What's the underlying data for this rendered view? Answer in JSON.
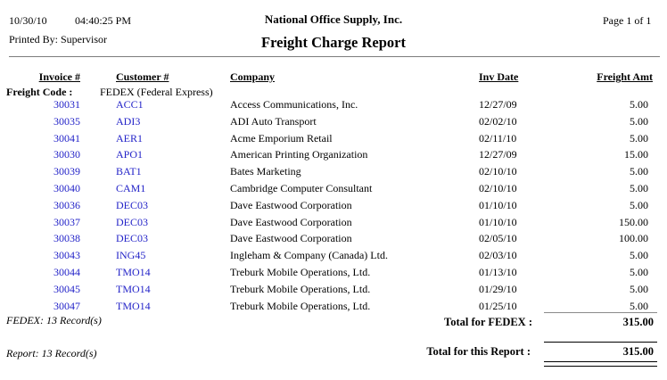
{
  "page_header": {
    "date": "10/30/10",
    "time": "04:40:25 PM",
    "printed_by": "Printed By: Supervisor",
    "company_name": "National Office Supply, Inc.",
    "report_title": "Freight Charge Report",
    "page_indicator": "Page 1 of 1"
  },
  "columns": {
    "invoice": "Invoice #",
    "customer": "Customer #",
    "company": "Company",
    "inv_date": "Inv Date",
    "freight_amt": "Freight Amt"
  },
  "group": {
    "freight_code_label": "Freight Code :",
    "freight_code_value": "FEDEX (Federal Express)"
  },
  "rows": [
    {
      "invoice": "30031",
      "customer": "ACC1",
      "company": "Access Communications, Inc.",
      "inv_date": "12/27/09",
      "freight_amt": "5.00"
    },
    {
      "invoice": "30035",
      "customer": "ADI3",
      "company": "ADI Auto Transport",
      "inv_date": "02/02/10",
      "freight_amt": "5.00"
    },
    {
      "invoice": "30041",
      "customer": "AER1",
      "company": "Acme Emporium Retail",
      "inv_date": "02/11/10",
      "freight_amt": "5.00"
    },
    {
      "invoice": "30030",
      "customer": "APO1",
      "company": "American Printing Organization",
      "inv_date": "12/27/09",
      "freight_amt": "15.00"
    },
    {
      "invoice": "30039",
      "customer": "BAT1",
      "company": "Bates Marketing",
      "inv_date": "02/10/10",
      "freight_amt": "5.00"
    },
    {
      "invoice": "30040",
      "customer": "CAM1",
      "company": "Cambridge Computer Consultant",
      "inv_date": "02/10/10",
      "freight_amt": "5.00"
    },
    {
      "invoice": "30036",
      "customer": "DEC03",
      "company": "Dave Eastwood Corporation",
      "inv_date": "01/10/10",
      "freight_amt": "5.00"
    },
    {
      "invoice": "30037",
      "customer": "DEC03",
      "company": "Dave Eastwood Corporation",
      "inv_date": "01/10/10",
      "freight_amt": "150.00"
    },
    {
      "invoice": "30038",
      "customer": "DEC03",
      "company": "Dave Eastwood Corporation",
      "inv_date": "02/05/10",
      "freight_amt": "100.00"
    },
    {
      "invoice": "30043",
      "customer": "ING45",
      "company": "Ingleham & Company (Canada) Ltd.",
      "inv_date": "02/03/10",
      "freight_amt": "5.00"
    },
    {
      "invoice": "30044",
      "customer": "TMO14",
      "company": "Treburk Mobile Operations, Ltd.",
      "inv_date": "01/13/10",
      "freight_amt": "5.00"
    },
    {
      "invoice": "30045",
      "customer": "TMO14",
      "company": "Treburk Mobile Operations, Ltd.",
      "inv_date": "01/29/10",
      "freight_amt": "5.00"
    },
    {
      "invoice": "30047",
      "customer": "TMO14",
      "company": "Treburk Mobile Operations, Ltd.",
      "inv_date": "01/25/10",
      "freight_amt": "5.00"
    }
  ],
  "group_footer": {
    "record_count": "FEDEX: 13 Record(s)",
    "total_label": "Total for FEDEX :",
    "total_amount": "315.00"
  },
  "report_footer": {
    "record_count": "Report: 13 Record(s)",
    "total_label": "Total for this Report :",
    "total_amount": "315.00"
  },
  "colors": {
    "link_blue": "#2323c8"
  }
}
